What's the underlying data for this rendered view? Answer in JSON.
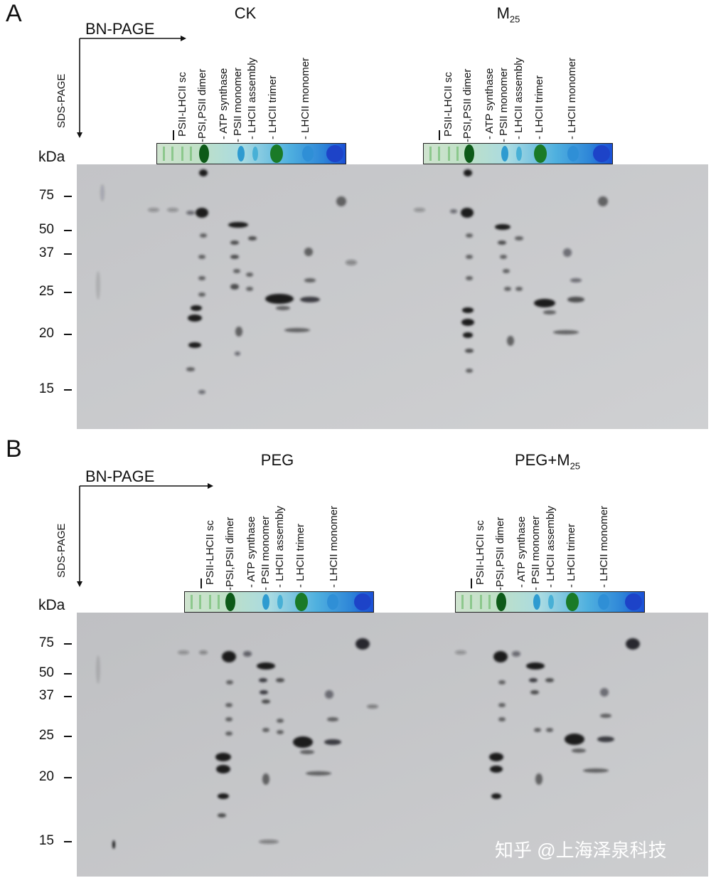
{
  "panels": [
    {
      "letter": "A",
      "bn_page_label": "BN-PAGE",
      "sds_page_label": "SDS-PAGE",
      "kda_label": "kDa",
      "conditions": [
        {
          "main": "CK",
          "sub": ""
        },
        {
          "main": "M",
          "sub": "25"
        }
      ],
      "lane_labels": [
        "PSII-LHCII sc",
        "-PSI,PSII dimer",
        "- ATP synthase",
        "- PSII monomer",
        "- LHCII assembly",
        "- LHCII trimer",
        "- LHCII monomer"
      ],
      "mw_markers": [
        "75",
        "50",
        "37",
        "25",
        "20",
        "15"
      ]
    },
    {
      "letter": "B",
      "bn_page_label": "BN-PAGE",
      "sds_page_label": "SDS-PAGE",
      "kda_label": "kDa",
      "conditions": [
        {
          "main": "PEG",
          "sub": ""
        },
        {
          "main": "PEG+M",
          "sub": "25"
        }
      ],
      "lane_labels": [
        "PSII-LHCII sc",
        "-PSI,PSII dimer",
        "- ATP synthase",
        "- PSII monomer",
        "- LHCII assembly",
        "- LHCII trimer",
        "- LHCII monomer"
      ],
      "mw_markers": [
        "75",
        "50",
        "37",
        "25",
        "20",
        "15"
      ]
    }
  ],
  "watermark": "知乎 @上海泽泉科技",
  "colors": {
    "gel_background": "#c8c9cb",
    "band": "#1a1a1f",
    "strip_green": "#1f7a2a",
    "strip_blue": "#1a4fd6"
  }
}
